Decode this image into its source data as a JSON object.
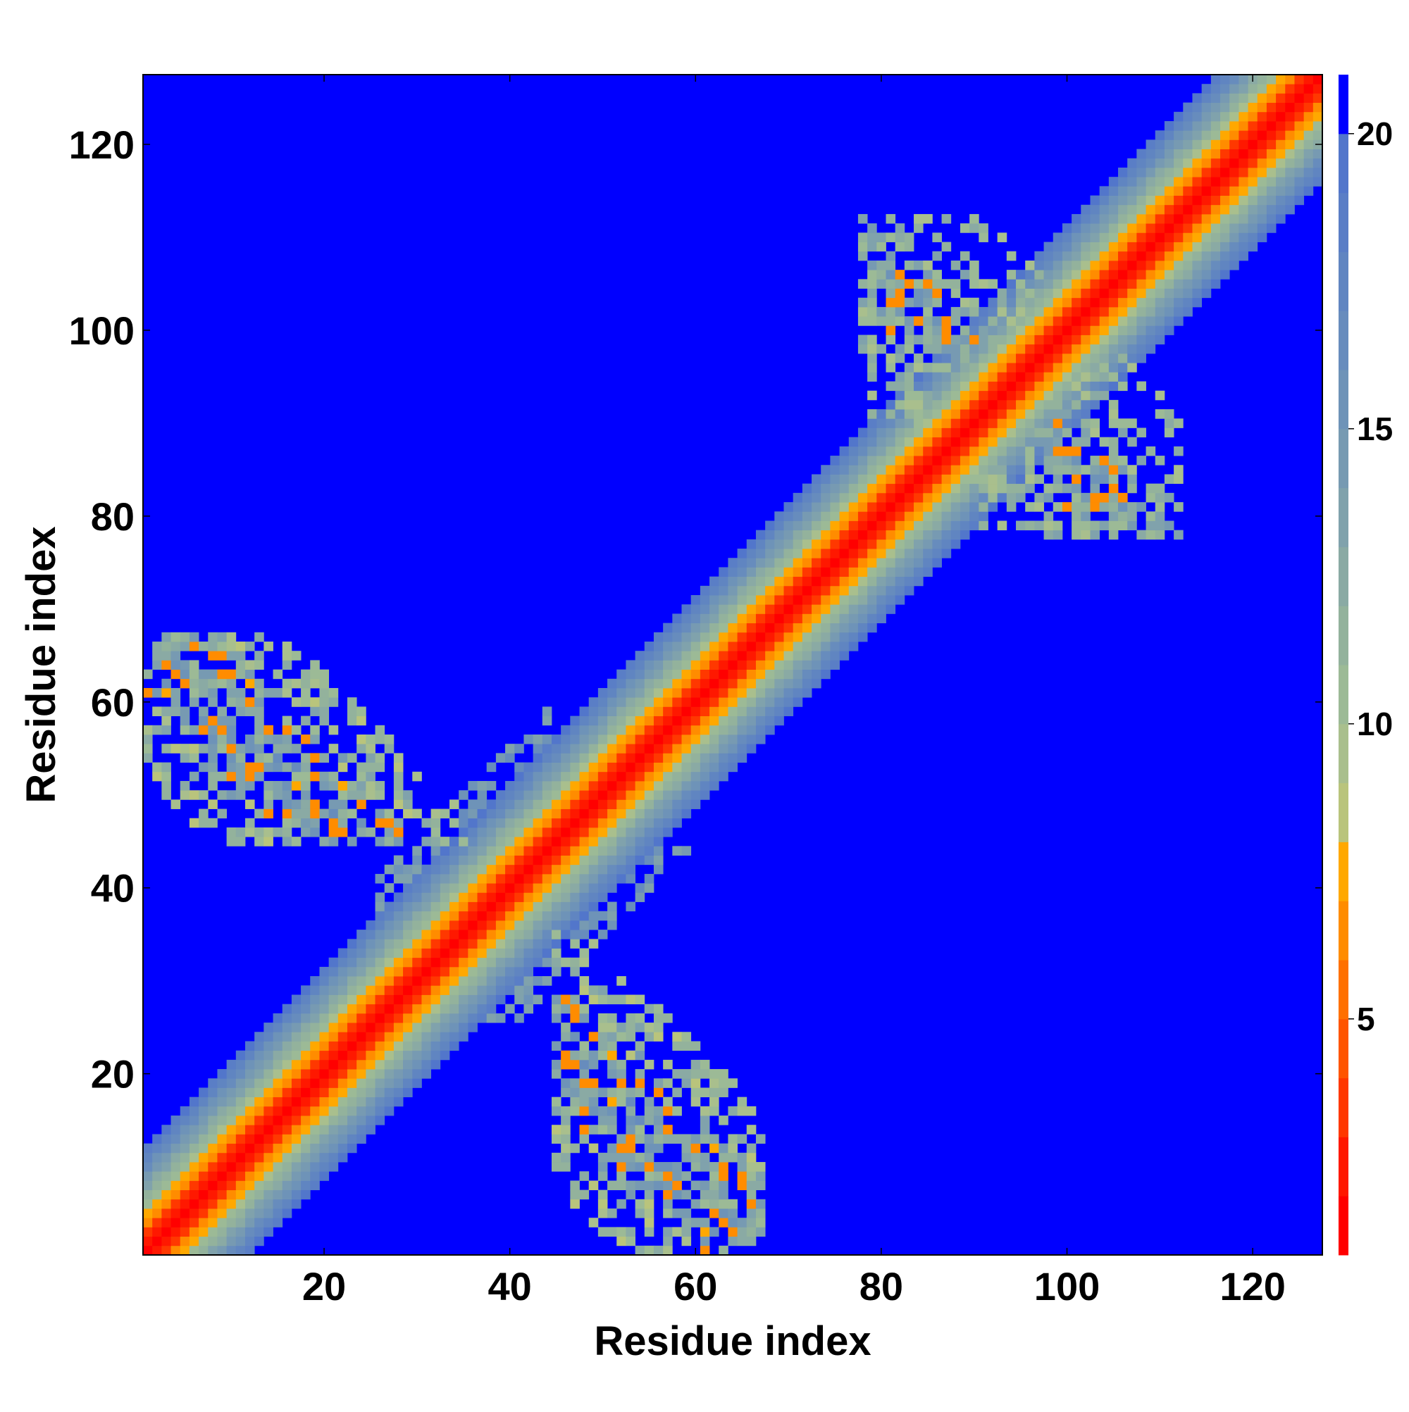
{
  "chart_data": {
    "type": "heatmap",
    "title": "",
    "xlabel": "Residue index",
    "ylabel": "Residue index",
    "n_residues": 127,
    "xlim": [
      1,
      127
    ],
    "ylim": [
      1,
      127
    ],
    "x_ticks": [
      20,
      40,
      60,
      80,
      100,
      120
    ],
    "y_ticks": [
      20,
      40,
      60,
      80,
      100,
      120
    ],
    "x_tick_labels": [
      "20",
      "40",
      "60",
      "80",
      "100",
      "120"
    ],
    "y_tick_labels": [
      "20",
      "40",
      "60",
      "80",
      "100",
      "120"
    ],
    "grid": false,
    "background_value": 21,
    "colorbar": {
      "placement": "right",
      "range": [
        1,
        21
      ],
      "ticks": [
        5,
        10,
        15,
        20
      ],
      "tick_labels": [
        "5",
        "10",
        "15",
        "20"
      ],
      "colors": [
        {
          "max": 2,
          "color": "#ff0000"
        },
        {
          "max": 3,
          "color": "#ff1800"
        },
        {
          "max": 4,
          "color": "#ff3800"
        },
        {
          "max": 5,
          "color": "#ff5500"
        },
        {
          "max": 6,
          "color": "#ff7000"
        },
        {
          "max": 7,
          "color": "#ff8c00"
        },
        {
          "max": 8,
          "color": "#ffa800"
        },
        {
          "max": 9,
          "color": "#b9c47c"
        },
        {
          "max": 10,
          "color": "#a9bf8d"
        },
        {
          "max": 11,
          "color": "#9cba96"
        },
        {
          "max": 12,
          "color": "#93b29c"
        },
        {
          "max": 13,
          "color": "#8aaaa4"
        },
        {
          "max": 14,
          "color": "#80a2ac"
        },
        {
          "max": 15,
          "color": "#779ab2"
        },
        {
          "max": 16,
          "color": "#6e93b8"
        },
        {
          "max": 17,
          "color": "#678cbd"
        },
        {
          "max": 18,
          "color": "#6085c1"
        },
        {
          "max": 19,
          "color": "#5a7ec6"
        },
        {
          "max": 20,
          "color": "#5276cb"
        },
        {
          "max": 21,
          "color": "#0000ff"
        }
      ]
    },
    "description": "Symmetric residue-residue distance map; values encode distance, low values (red) along the main diagonal, anti-diagonal contact bands between residues ~1-35 and ~45-65 and between ~80-95 and ~95-110.",
    "contact_regions": [
      {
        "x_range": [
          1,
          35
        ],
        "y_range": [
          45,
          66
        ],
        "strength": 0.9
      },
      {
        "x_range": [
          85,
          110
        ],
        "y_range": [
          80,
          110
        ],
        "strength": 0.7
      },
      {
        "x_range": [
          28,
          45
        ],
        "y_range": [
          28,
          45
        ],
        "strength": 0.8
      }
    ]
  }
}
